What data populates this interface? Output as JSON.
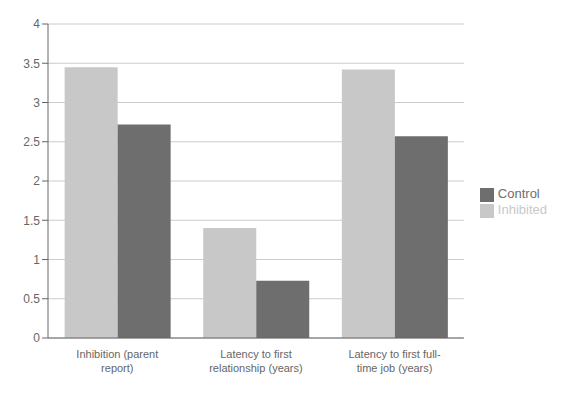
{
  "chart_data": {
    "type": "bar",
    "categories": [
      "Inhibition (parent\nreport)",
      "Latency to first\nrelationship (years)",
      "Latency to first full-\ntime job (years)"
    ],
    "series": [
      {
        "name": "Inhibited",
        "color": "#c8c8c8",
        "values": [
          3.45,
          1.4,
          3.42
        ]
      },
      {
        "name": "Control",
        "color": "#6e6e6e",
        "values": [
          2.72,
          0.73,
          2.57
        ]
      }
    ],
    "ylim": [
      0,
      4
    ],
    "yticks": [
      0,
      0.5,
      1,
      1.5,
      2,
      2.5,
      3,
      3.5,
      4
    ],
    "grid": true,
    "legend": "right"
  }
}
